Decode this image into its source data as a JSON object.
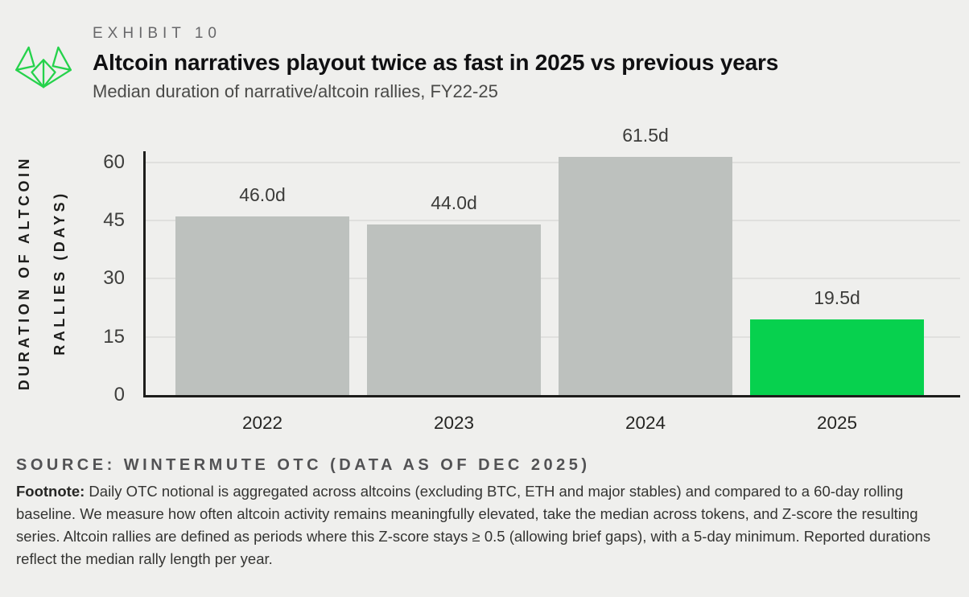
{
  "header": {
    "exhibit_label": "EXHIBIT 10",
    "title": "Altcoin narratives playout twice as fast in 2025 vs previous years",
    "subtitle": "Median duration of narrative/altcoin rallies, FY22-25",
    "logo_icon": "wintermute-logo"
  },
  "chart_data": {
    "type": "bar",
    "title": "Altcoin narratives playout twice as fast in 2025 vs previous years",
    "subtitle": "Median duration of narrative/altcoin rallies, FY22-25",
    "categories": [
      "2022",
      "2023",
      "2024",
      "2025"
    ],
    "values": [
      46.0,
      44.0,
      61.5,
      19.5
    ],
    "bar_labels": [
      "46.0d",
      "44.0d",
      "61.5d",
      "19.5d"
    ],
    "unit": "days",
    "ylabel_lines": [
      "DURATION OF ALTCOIN",
      "RALLIES (DAYS)"
    ],
    "yticks": [
      0,
      15,
      30,
      45,
      60
    ],
    "ylim": [
      0,
      63
    ],
    "grid": "horizontal",
    "legend_position": "none",
    "bar_colors": [
      "#bdc1be",
      "#bdc1be",
      "#bdc1be",
      "#07d14e"
    ],
    "highlight_category": "2025"
  },
  "footer": {
    "source": "SOURCE: WINTERMUTE OTC (DATA AS OF DEC 2025)",
    "footnote_label": "Footnote:",
    "footnote_text": "Daily OTC notional is aggregated across altcoins (excluding BTC, ETH and major stables) and compared to a 60-day rolling baseline. We measure how often altcoin activity remains meaningfully elevated, take the median across tokens, and Z-score the resulting series. Altcoin rallies are defined as periods where this Z-score stays ≥ 0.5 (allowing brief gaps), with a 5-day minimum. Reported durations reflect the median rally length per year."
  },
  "colors": {
    "background": "#efefed",
    "bar_gray": "#bdc1be",
    "bar_green": "#07d14e",
    "logo_green": "#25d24b",
    "axis": "#1d1d1b",
    "gridline": "#e0e0de"
  }
}
